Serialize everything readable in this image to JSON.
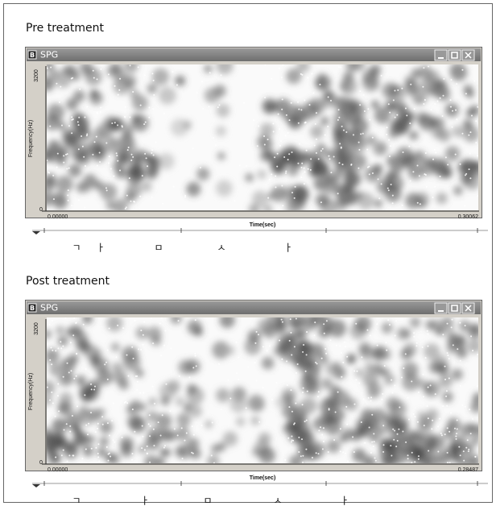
{
  "panels": [
    {
      "heading": "Pre treatment",
      "window_icon": "B",
      "window_title": "SPG",
      "y_max_label": "3200",
      "y_axis_label": "Frequency(Hz)",
      "y_min_label": "0",
      "x_start_label": "0.00000",
      "x_axis_label": "Time(sec)",
      "x_end_label": "0.30062",
      "segments": [
        "ㄱ",
        "ㅏ",
        "ㅁ",
        "ㅅ",
        "ㅏ"
      ]
    },
    {
      "heading": "Post treatment",
      "window_icon": "B",
      "window_title": "SPG",
      "y_max_label": "3200",
      "y_axis_label": "Frequency(Hz)",
      "y_min_label": "0",
      "x_start_label": "0.00000",
      "x_axis_label": "Time(sec)",
      "x_end_label": "0.28487",
      "segments": [
        "ㄱ",
        "ㅏ",
        "ㅁ",
        "ㅅ",
        "ㅏ"
      ]
    }
  ]
}
